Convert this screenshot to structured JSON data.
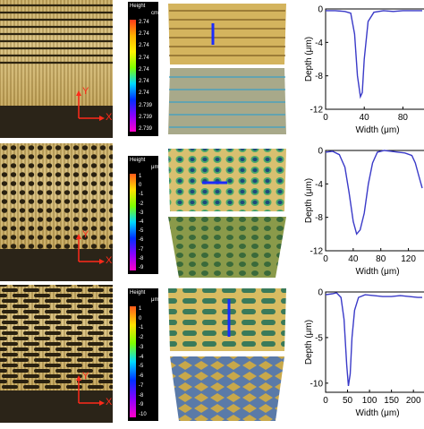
{
  "rows": [
    {
      "micro_axes": {
        "y": "Y",
        "x": "X"
      },
      "legend": {
        "title": "Height",
        "unit": "cm",
        "ticks": [
          "2.74",
          "2.74",
          "2.74",
          "2.74",
          "2.74",
          "2.74",
          "2.74",
          "2.739",
          "2.739",
          "2.739"
        ]
      },
      "profile": {
        "ylabel": "Depth (μm)",
        "xlabel": "Width (μm)",
        "yticks": [
          "0",
          "-4",
          "-8",
          "-12"
        ],
        "xticks": [
          "0",
          "40",
          "80"
        ]
      }
    },
    {
      "micro_axes": {
        "y": "Y",
        "x": "X"
      },
      "legend": {
        "title": "Height",
        "unit": "μm",
        "ticks": [
          "1",
          "0",
          "-1",
          "-2",
          "-3",
          "-4",
          "-5",
          "-6",
          "-7",
          "-8",
          "-9"
        ]
      },
      "profile": {
        "ylabel": "Depth (μm)",
        "xlabel": "Width (μm)",
        "yticks": [
          "0",
          "-4",
          "-8",
          "-12"
        ],
        "xticks": [
          "0",
          "40",
          "80",
          "120"
        ]
      }
    },
    {
      "micro_axes": {
        "y": "Y",
        "x": "X"
      },
      "legend": {
        "title": "Height",
        "unit": "μm",
        "ticks": [
          "1",
          "0",
          "-1",
          "-2",
          "-3",
          "-4",
          "-5",
          "-6",
          "-7",
          "-8",
          "-9",
          "-10"
        ]
      },
      "profile": {
        "ylabel": "Depth (μm)",
        "xlabel": "Width (μm)",
        "yticks": [
          "0",
          "-5",
          "-10"
        ],
        "xticks": [
          "0",
          "50",
          "100",
          "150",
          "200"
        ]
      }
    }
  ],
  "chart_data": [
    {
      "type": "line",
      "xlabel": "Width (μm)",
      "ylabel": "Depth (μm)",
      "xlim": [
        0,
        100
      ],
      "ylim": [
        -12,
        0
      ],
      "series": [
        {
          "x": [
            0,
            10,
            20,
            26,
            30,
            33,
            36,
            38,
            40,
            44,
            50,
            60,
            70,
            80,
            90,
            100
          ],
          "values": [
            -0.2,
            -0.2,
            -0.3,
            -0.5,
            -3,
            -8,
            -10.5,
            -10,
            -6,
            -1.5,
            -0.4,
            -0.2,
            -0.3,
            -0.2,
            -0.2,
            -0.2
          ]
        }
      ]
    },
    {
      "type": "line",
      "xlabel": "Width (μm)",
      "ylabel": "Depth (μm)",
      "xlim": [
        0,
        140
      ],
      "ylim": [
        -12,
        0
      ],
      "series": [
        {
          "x": [
            0,
            10,
            20,
            28,
            34,
            40,
            45,
            50,
            56,
            62,
            68,
            75,
            85,
            95,
            105,
            115,
            125,
            130,
            135,
            140
          ],
          "values": [
            -0.2,
            -0.1,
            -0.5,
            -2,
            -5,
            -8.5,
            -10,
            -9.5,
            -7.5,
            -4,
            -1.5,
            -0.2,
            0,
            -0.1,
            -0.2,
            -0.3,
            -0.6,
            -1.5,
            -3,
            -4.5
          ]
        }
      ]
    },
    {
      "type": "line",
      "xlabel": "Width (μm)",
      "ylabel": "Depth (μm)",
      "xlim": [
        0,
        220
      ],
      "ylim": [
        -11,
        0
      ],
      "series": [
        {
          "x": [
            0,
            15,
            25,
            35,
            42,
            48,
            52,
            56,
            60,
            66,
            75,
            90,
            110,
            130,
            150,
            170,
            190,
            210,
            220
          ],
          "values": [
            -0.3,
            -0.2,
            -0.1,
            -0.6,
            -3,
            -8,
            -10.3,
            -9,
            -5,
            -2,
            -0.6,
            -0.3,
            -0.4,
            -0.5,
            -0.5,
            -0.4,
            -0.5,
            -0.6,
            -0.6
          ]
        }
      ]
    }
  ]
}
